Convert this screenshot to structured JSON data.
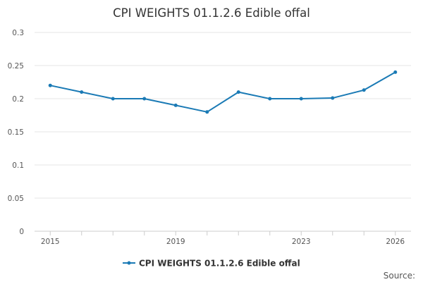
{
  "chart_data": {
    "type": "line",
    "title": "CPI WEIGHTS 01.1.2.6 Edible offal",
    "xlabel": "",
    "ylabel": "",
    "x": [
      2015,
      2016,
      2017,
      2018,
      2019,
      2020,
      2021,
      2022,
      2023,
      2024,
      2025,
      2026
    ],
    "x_tick_labels": [
      "2015",
      "2019",
      "2023",
      "2026"
    ],
    "x_ticks": [
      2015,
      2019,
      2023,
      2026
    ],
    "y_ticks": [
      0,
      0.05,
      0.1,
      0.15,
      0.2,
      0.25,
      0.3
    ],
    "y_tick_labels": [
      "0",
      "0.05",
      "0.1",
      "0.15",
      "0.2",
      "0.25",
      "0.3"
    ],
    "ylim": [
      0,
      0.3
    ],
    "xlim": [
      2014.5,
      2026.5
    ],
    "grid": true,
    "legend_position": "bottom",
    "series": [
      {
        "name": "CPI WEIGHTS 01.1.2.6 Edible offal",
        "color": "#1a7ab5",
        "values": [
          0.22,
          0.21,
          0.2,
          0.2,
          0.19,
          0.18,
          0.21,
          0.2,
          0.2,
          0.201,
          0.213,
          0.24
        ]
      }
    ],
    "source_label": "Source:"
  }
}
